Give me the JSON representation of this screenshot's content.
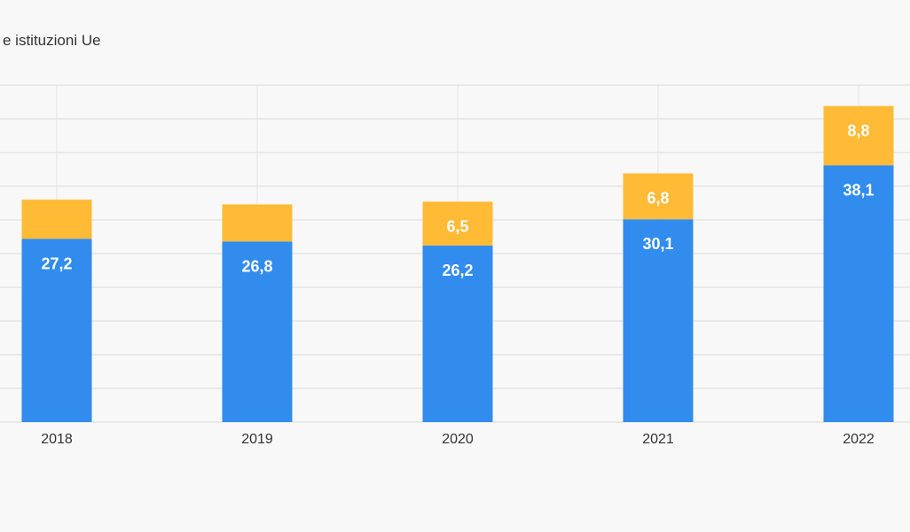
{
  "legend": {
    "partial_text": "e istituzioni Ue"
  },
  "colors": {
    "series_primary": "#318CEE",
    "series_secondary": "#FFBA36",
    "grid": "#e4e4e4",
    "background": "#f8f8f8"
  },
  "chart_data": {
    "type": "bar",
    "stacked": true,
    "categories": [
      "2018",
      "2019",
      "2020",
      "2021",
      "2022"
    ],
    "series": [
      {
        "values": [
          27.2,
          26.8,
          26.2,
          30.1,
          38.1
        ],
        "labels": [
          "27,2",
          "26,8",
          "26,2",
          "30,1",
          "38,1"
        ],
        "color": "#318CEE"
      },
      {
        "values": [
          5.8,
          5.5,
          6.5,
          6.8,
          8.8
        ],
        "labels": [
          "",
          "",
          "6,5",
          "6,8",
          "8,8"
        ],
        "color": "#FFBA36"
      }
    ],
    "title": "",
    "xlabel": "",
    "ylabel": "",
    "ylim": [
      0,
      50
    ],
    "grid": true,
    "legend": "top-left"
  }
}
